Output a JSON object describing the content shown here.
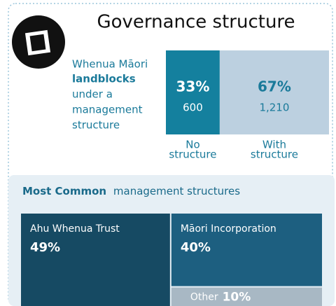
{
  "title": "Governance structure",
  "intro": [
    "Whenua Māori",
    "landblocks",
    "under a",
    "management",
    "structure"
  ],
  "split": [
    {
      "value": 33,
      "value_label": "33%",
      "count": 600,
      "count_label": "600",
      "label": [
        "No",
        "structure"
      ],
      "color": "#14809e",
      "text_color": "#ffffff"
    },
    {
      "value": 67,
      "value_label": "67%",
      "count": 1210,
      "count_label": "1,210",
      "label": [
        "With",
        "structure"
      ],
      "color": "#bcd0e0",
      "text_color": "#1a7a9a"
    }
  ],
  "section_title": [
    "Most Common",
    "management structures"
  ],
  "treemap": [
    {
      "name": "Ahu Whenua Trust",
      "value": 49,
      "value_label": "49%",
      "color": "#164a63"
    },
    {
      "name": "Māori Incorporation",
      "value": 40,
      "value_label": "40%",
      "color": "#1d5f80"
    },
    {
      "name": "Other",
      "value": 10,
      "value_label": "10%",
      "color": "#a8b8c4"
    }
  ]
}
